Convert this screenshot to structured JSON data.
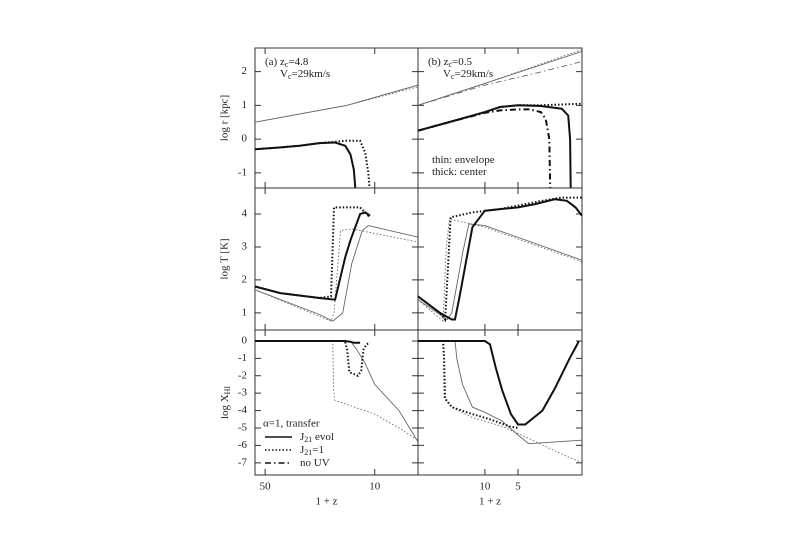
{
  "chart_data": [
    {
      "type": "line",
      "ylabel": "log r [kpc]",
      "xlim": [
        58,
        5.3
      ],
      "ylim": [
        -1.45,
        2.7
      ],
      "yticks": [
        -1,
        0,
        1,
        2
      ],
      "xticks": [
        50,
        10
      ],
      "xscale": "log",
      "annotations": [
        [
          {
            "text": "(a) z"
          },
          {
            "text": "c",
            "sub": true
          },
          {
            "text": "=4.8"
          }
        ],
        [
          {
            "text": "V"
          },
          {
            "text": "c",
            "sub": true
          },
          {
            "text": "=29km/s"
          }
        ]
      ],
      "series": [
        {
          "style": "solid",
          "width": "thin",
          "x": [
            58,
            15,
            5.3
          ],
          "values": [
            0.5,
            1.0,
            1.6
          ]
        },
        {
          "style": "dotted",
          "width": "thin",
          "x": [
            58,
            15,
            5.3
          ],
          "values": [
            0.5,
            1.0,
            1.55
          ]
        },
        {
          "style": "dotted",
          "width": "thick",
          "x": [
            58,
            40.6,
            30.2,
            22.5,
            17.9,
            15.4,
            12.4,
            11.5,
            11.0,
            10.8
          ],
          "values": [
            -0.3,
            -0.25,
            -0.2,
            -0.12,
            -0.08,
            -0.05,
            -0.05,
            -0.4,
            -1.0,
            -1.45
          ]
        },
        {
          "style": "solid",
          "width": "thick",
          "x": [
            58,
            40.6,
            30.2,
            22.5,
            17.9,
            15.4,
            14.3,
            13.6,
            13.3
          ],
          "values": [
            -0.3,
            -0.25,
            -0.2,
            -0.12,
            -0.1,
            -0.2,
            -0.45,
            -0.9,
            -1.45
          ]
        }
      ]
    },
    {
      "type": "line",
      "xlim": [
        40.6,
        1.31
      ],
      "ylim": [
        -1.45,
        2.7
      ],
      "yticks": [
        -1,
        0,
        1,
        2
      ],
      "xticks": [
        10,
        5
      ],
      "xscale": "log",
      "annotations": [
        [
          {
            "text": "(b) z"
          },
          {
            "text": "c",
            "sub": true
          },
          {
            "text": "=0.5"
          }
        ],
        [
          {
            "text": "V"
          },
          {
            "text": "c",
            "sub": true
          },
          {
            "text": "=29km/s"
          }
        ],
        [
          {
            "text": "thin: envelope"
          }
        ],
        [
          {
            "text": "thick: center"
          }
        ]
      ],
      "series": [
        {
          "style": "solid",
          "width": "thin",
          "x": [
            40.6,
            10,
            1.31
          ],
          "values": [
            1.0,
            1.65,
            2.6
          ]
        },
        {
          "style": "dotted",
          "width": "thin",
          "x": [
            40.6,
            10,
            1.31
          ],
          "values": [
            1.0,
            1.65,
            2.65
          ]
        },
        {
          "style": "dashdot",
          "width": "thin",
          "x": [
            40.6,
            10,
            3,
            1.31
          ],
          "values": [
            1.0,
            1.6,
            2.0,
            2.3
          ]
        },
        {
          "style": "dotted",
          "width": "thick",
          "x": [
            40.6,
            18.7,
            10,
            7.3,
            5,
            3.1,
            1.31
          ],
          "values": [
            0.25,
            0.55,
            0.8,
            0.95,
            1.0,
            1.0,
            1.05
          ]
        },
        {
          "style": "dashdot",
          "width": "thick",
          "x": [
            40.6,
            18.7,
            10,
            7.3,
            5,
            3.9,
            3.1,
            2.8,
            2.6,
            2.55
          ],
          "values": [
            0.25,
            0.55,
            0.78,
            0.85,
            0.88,
            0.88,
            0.8,
            0.6,
            0,
            -1.45
          ]
        },
        {
          "style": "solid",
          "width": "thick",
          "x": [
            40.6,
            18.7,
            10,
            7.3,
            5,
            3.1,
            2.0,
            1.75,
            1.68,
            1.66
          ],
          "values": [
            0.25,
            0.55,
            0.8,
            0.95,
            1.0,
            0.98,
            0.9,
            0.7,
            0,
            -1.45
          ]
        }
      ]
    },
    {
      "type": "line",
      "ylabel": "log T [K]",
      "xlim": [
        58,
        5.3
      ],
      "ylim": [
        0.48,
        4.79
      ],
      "yticks": [
        1,
        2,
        3,
        4
      ],
      "xticks": [
        50,
        10
      ],
      "xscale": "log",
      "series": [
        {
          "style": "solid",
          "width": "thin",
          "x": [
            58,
            22.5,
            18.5,
            16,
            14,
            12,
            11,
            5.3
          ],
          "values": [
            1.7,
            0.95,
            0.75,
            1.0,
            2.5,
            3.5,
            3.65,
            3.3
          ]
        },
        {
          "style": "dotted",
          "width": "thin",
          "x": [
            58,
            19,
            18.2,
            16.5,
            14,
            5.3
          ],
          "values": [
            1.7,
            0.75,
            1.0,
            3.5,
            3.55,
            3.15
          ]
        },
        {
          "style": "dotted",
          "width": "thick",
          "x": [
            58,
            40,
            22.5,
            19,
            18.2,
            12.4,
            11,
            10.7
          ],
          "values": [
            1.8,
            1.6,
            1.45,
            1.5,
            4.2,
            4.2,
            3.95,
            4.0
          ]
        },
        {
          "style": "solid",
          "width": "thick",
          "x": [
            58,
            40,
            22.5,
            17.9,
            15.4,
            14.3,
            12.4,
            11.5,
            10.7
          ],
          "values": [
            1.8,
            1.6,
            1.45,
            1.4,
            2.7,
            3.2,
            4.0,
            4.05,
            3.95
          ]
        }
      ]
    },
    {
      "type": "line",
      "xlim": [
        40.6,
        1.31
      ],
      "ylim": [
        0.48,
        4.79
      ],
      "yticks": [
        1,
        2,
        3,
        4
      ],
      "xticks": [
        10,
        5
      ],
      "xscale": "log",
      "series": [
        {
          "style": "solid",
          "width": "thin",
          "x": [
            40.6,
            22,
            20,
            16,
            14,
            10,
            1.31
          ],
          "values": [
            1.4,
            0.8,
            1.0,
            2.8,
            3.7,
            3.65,
            2.6
          ]
        },
        {
          "style": "dotted",
          "width": "thin",
          "x": [
            40.6,
            24,
            22.5,
            21,
            10,
            1.31
          ],
          "values": [
            1.4,
            0.75,
            3.0,
            3.85,
            3.6,
            2.55
          ]
        },
        {
          "style": "dotted",
          "width": "thick",
          "x": [
            40.6,
            25.6,
            23,
            22,
            20.5,
            13,
            7.3,
            3,
            2,
            1.31
          ],
          "values": [
            1.5,
            1.0,
            0.8,
            2.0,
            3.9,
            4.05,
            4.15,
            4.4,
            4.5,
            4.5
          ]
        },
        {
          "style": "solid",
          "width": "thick",
          "x": [
            40.6,
            25.6,
            20,
            18.7,
            17,
            13,
            10,
            7.3,
            5,
            3.5,
            2.3,
            1.8,
            1.5,
            1.31
          ],
          "values": [
            1.5,
            1.0,
            0.8,
            0.8,
            1.5,
            3.6,
            4.1,
            4.15,
            4.2,
            4.3,
            4.45,
            4.4,
            4.2,
            3.95
          ]
        }
      ]
    },
    {
      "type": "line",
      "ylabel": [
        {
          "text": "log X"
        },
        {
          "text": "HI",
          "sub": true
        }
      ],
      "xlabel": "1 + z",
      "xlim": [
        58,
        5.3
      ],
      "ylim": [
        -7.7,
        0.63
      ],
      "yticks": [
        -7,
        -6,
        -5,
        -4,
        -3,
        -2,
        -1,
        0
      ],
      "xticks": [
        50,
        10
      ],
      "xscale": "log",
      "legend": {
        "title": "α=1, transfer",
        "entries": [
          {
            "style": "solid",
            "label": [
              {
                "text": "J"
              },
              {
                "text": "21",
                "sub": true
              },
              {
                "text": " evol"
              }
            ]
          },
          {
            "style": "dotted",
            "label": [
              {
                "text": "J"
              },
              {
                "text": "21",
                "sub": true
              },
              {
                "text": "=1"
              }
            ]
          },
          {
            "style": "dashdot",
            "label": [
              {
                "text": "no UV"
              }
            ]
          }
        ]
      },
      "series": [
        {
          "style": "solid",
          "width": "thin",
          "x": [
            58,
            14.3,
            13,
            11.5,
            10,
            7,
            5.3
          ],
          "values": [
            0,
            0,
            -0.5,
            -1.3,
            -2.5,
            -4.0,
            -5.8
          ]
        },
        {
          "style": "dotted",
          "width": "thin",
          "x": [
            58,
            18.5,
            18.3,
            18,
            10,
            7,
            5.3
          ],
          "values": [
            0,
            0,
            -2.8,
            -3.4,
            -4.2,
            -5.0,
            -5.7
          ]
        },
        {
          "style": "dotted",
          "width": "thick",
          "x": [
            58,
            15.5,
            15,
            14.5,
            13.6,
            12.8,
            12.2,
            11.8,
            11.3,
            10.7
          ],
          "values": [
            0,
            0,
            -0.5,
            -1.8,
            -1.9,
            -2.0,
            -1.7,
            -0.5,
            -0.2,
            -0.1
          ]
        },
        {
          "style": "solid",
          "width": "thick",
          "x": [
            58,
            15.5,
            14.3,
            13.6,
            12.4
          ],
          "values": [
            0,
            0,
            -0.05,
            -0.1,
            -0.1
          ]
        }
      ]
    },
    {
      "type": "line",
      "xlabel": "1 + z",
      "xlim": [
        40.6,
        1.31
      ],
      "ylim": [
        -7.7,
        0.63
      ],
      "yticks": [
        -7,
        -6,
        -5,
        -4,
        -3,
        -2,
        -1,
        0
      ],
      "xticks": [
        10,
        5
      ],
      "xscale": "log",
      "series": [
        {
          "style": "solid",
          "width": "thin",
          "x": [
            40.6,
            18.7,
            18,
            16,
            13,
            10,
            7,
            5,
            4,
            1.31
          ],
          "values": [
            0,
            0,
            -1.0,
            -2.5,
            -3.8,
            -4.1,
            -4.6,
            -5.4,
            -5.9,
            -5.7
          ]
        },
        {
          "style": "dotted",
          "width": "thin",
          "x": [
            40.6,
            24,
            23.5,
            20,
            13,
            7,
            4,
            2,
            1.31
          ],
          "values": [
            0,
            0,
            -3.3,
            -3.8,
            -4.4,
            -4.9,
            -5.6,
            -6.5,
            -7.0
          ]
        },
        {
          "style": "dotted",
          "width": "thick",
          "x": [
            40.6,
            24,
            23.5,
            23,
            20,
            13,
            9,
            6,
            5
          ],
          "values": [
            0,
            0,
            -1,
            -3.3,
            -3.8,
            -4.2,
            -4.5,
            -4.9,
            -5.0
          ]
        },
        {
          "style": "solid",
          "width": "thick",
          "x": [
            40.6,
            10,
            9,
            8,
            7,
            5.8,
            5,
            4.3,
            3,
            2.3,
            1.7,
            1.45,
            1.4
          ],
          "values": [
            0,
            0,
            -0.2,
            -1.5,
            -2.8,
            -4.2,
            -4.8,
            -4.8,
            -4.0,
            -2.7,
            -1.0,
            -0.2,
            0
          ]
        }
      ]
    }
  ]
}
